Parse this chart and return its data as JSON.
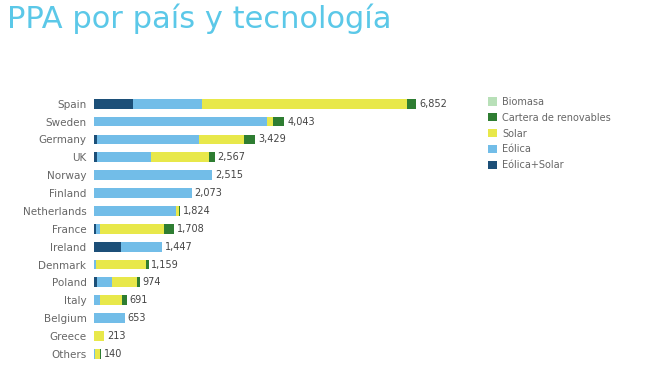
{
  "title": "PPA por país y tecnología",
  "title_color": "#5bc8e8",
  "title_fontsize": 22,
  "countries": [
    "Spain",
    "Sweden",
    "Germany",
    "UK",
    "Norway",
    "Finland",
    "Netherlands",
    "France",
    "Ireland",
    "Denmark",
    "Poland",
    "Italy",
    "Belgium",
    "Greece",
    "Others"
  ],
  "totals": [
    6852,
    4043,
    3429,
    2567,
    2515,
    2073,
    1824,
    1708,
    1447,
    1159,
    974,
    691,
    653,
    213,
    140
  ],
  "segments": {
    "Eólica+Solar": {
      "color": "#1c4f78",
      "values": [
        820,
        0,
        70,
        55,
        0,
        0,
        0,
        40,
        580,
        0,
        55,
        0,
        0,
        0,
        0
      ]
    },
    "Eólica": {
      "color": "#72bde8",
      "values": [
        1480,
        3680,
        2150,
        1150,
        2515,
        2073,
        1750,
        80,
        867,
        40,
        330,
        130,
        653,
        0,
        15
      ]
    },
    "Solar": {
      "color": "#e8e84a",
      "values": [
        4350,
        130,
        970,
        1230,
        0,
        0,
        50,
        1370,
        0,
        1069,
        520,
        470,
        0,
        213,
        105
      ]
    },
    "Cartera de renovables": {
      "color": "#2e7d32",
      "values": [
        202,
        233,
        239,
        132,
        0,
        0,
        24,
        218,
        0,
        50,
        69,
        91,
        0,
        0,
        20
      ]
    },
    "Biomasa": {
      "color": "#b8e0b8",
      "values": [
        0,
        0,
        0,
        0,
        0,
        0,
        0,
        0,
        0,
        0,
        0,
        0,
        0,
        0,
        0
      ]
    }
  },
  "legend_labels": [
    "Biomasa",
    "Cartera de renovables",
    "Solar",
    "Eólica",
    "Eólica+Solar"
  ],
  "legend_colors": [
    "#b8e0b8",
    "#2e7d32",
    "#e8e84a",
    "#72bde8",
    "#1c4f78"
  ],
  "bg_color": "#ffffff",
  "bar_height": 0.55,
  "value_fontsize": 7,
  "label_fontsize": 7.5,
  "figsize": [
    6.72,
    3.72
  ],
  "dpi": 100
}
